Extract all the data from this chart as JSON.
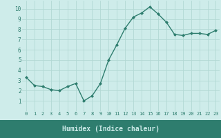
{
  "x": [
    0,
    1,
    2,
    3,
    4,
    5,
    6,
    7,
    8,
    9,
    10,
    11,
    12,
    13,
    14,
    15,
    16,
    17,
    18,
    19,
    20,
    21,
    22,
    23
  ],
  "y": [
    3.3,
    2.5,
    2.4,
    2.1,
    2.0,
    2.4,
    2.7,
    1.0,
    1.5,
    2.7,
    5.0,
    6.5,
    8.1,
    9.2,
    9.6,
    10.2,
    9.5,
    8.7,
    7.5,
    7.4,
    7.6,
    7.6,
    7.5,
    7.9
  ],
  "xlabel": "Humidex (Indice chaleur)",
  "xlim": [
    -0.5,
    23.5
  ],
  "ylim": [
    0,
    10.8
  ],
  "yticks": [
    1,
    2,
    3,
    4,
    5,
    6,
    7,
    8,
    9,
    10
  ],
  "xticks": [
    0,
    1,
    2,
    3,
    4,
    5,
    6,
    7,
    8,
    9,
    10,
    11,
    12,
    13,
    14,
    15,
    16,
    17,
    18,
    19,
    20,
    21,
    22,
    23
  ],
  "line_color": "#2e7d6e",
  "marker": "D",
  "marker_size": 2.0,
  "bg_color": "#ceecea",
  "grid_color": "#b2d8d4",
  "bottom_bar_color": "#2e7d6e",
  "bottom_bar_text_color": "#ceecea",
  "tick_label_color": "#2e7d6e",
  "tick_fontsize": 5.0,
  "ylabel_fontsize": 5.5,
  "xlabel_fontsize": 7.0,
  "linewidth": 1.0
}
